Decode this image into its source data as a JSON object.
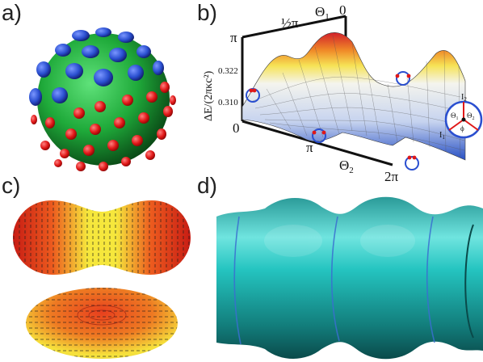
{
  "panels": {
    "a": {
      "label": "a)"
    },
    "b": {
      "label": "b)"
    },
    "c": {
      "label": "c)"
    },
    "d": {
      "label": "d)"
    }
  },
  "plot_b": {
    "ylabel": "ΔE/(2πκc²)",
    "y_ticks": [
      "0.310",
      "0.322"
    ],
    "axis_pi_top": "π",
    "axis_zero": "0",
    "theta1_label": "Θ",
    "theta1_sub": "1",
    "theta1_half_pi": "½π",
    "theta1_zero": "0",
    "theta2_label": "Θ",
    "theta2_sub": "2",
    "theta2_pi": "π",
    "theta2_2pi": "2π",
    "inset": {
      "I1": "I",
      "I1_sub": "1",
      "I2": "I",
      "I2_sub": "2",
      "T1": "Θ",
      "T1_sub": "1",
      "T2": "Θ",
      "T2_sub": "2",
      "phi": "ϕ"
    }
  },
  "colors": {
    "sphere_green": "#1faa3a",
    "blue_domain": "#2a4fd0",
    "red_domain": "#e01818",
    "teal_tube": "#1b9a98"
  }
}
